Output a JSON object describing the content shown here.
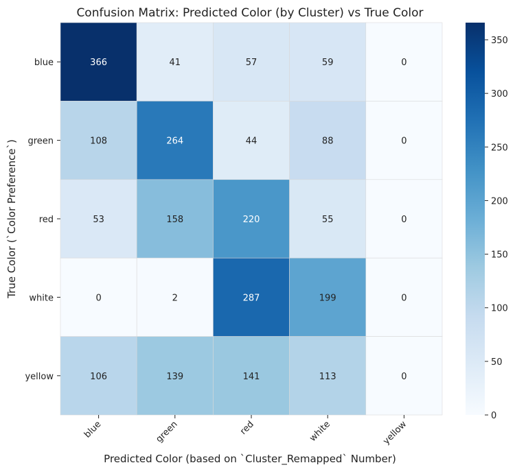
{
  "chart_data": {
    "type": "heatmap",
    "title": "Confusion Matrix: Predicted Color (by Cluster) vs True Color",
    "xlabel": "Predicted Color (based on `Cluster_Remapped` Number)",
    "ylabel": "True Color (`Color Preference`)",
    "x_categories": [
      "blue",
      "green",
      "red",
      "white",
      "yellow"
    ],
    "y_categories": [
      "blue",
      "green",
      "red",
      "white",
      "yellow"
    ],
    "values": [
      [
        366,
        41,
        57,
        59,
        0
      ],
      [
        108,
        264,
        44,
        88,
        0
      ],
      [
        53,
        158,
        220,
        55,
        0
      ],
      [
        0,
        2,
        287,
        199,
        0
      ],
      [
        106,
        139,
        141,
        113,
        0
      ]
    ],
    "colorbar": {
      "min": 0,
      "max": 366,
      "ticks": [
        "0",
        "50",
        "100",
        "150",
        "200",
        "250",
        "300",
        "350"
      ],
      "colormap": "Blues"
    },
    "annotations_shown": true,
    "grid": false
  },
  "colors": {
    "low": "#f7fbff",
    "high": "#08306b",
    "cell_border": "#d9d9d9",
    "text_dark": "#222222",
    "text_light": "#ffffff"
  }
}
